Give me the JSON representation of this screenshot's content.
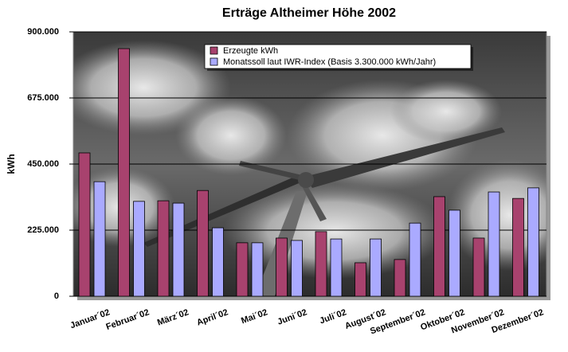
{
  "chart_data": {
    "type": "bar",
    "title": "Erträge Altheimer Höhe 2002",
    "y_label": "kWh",
    "categories": [
      "Januar´02",
      "Februar´02",
      "März´02",
      "April´02",
      "Mai´02",
      "Juni´02",
      "Juli´02",
      "August´02",
      "September´02",
      "Oktober´02",
      "November´02",
      "Dezember´02"
    ],
    "series": [
      {
        "name": "Erzeugte kWh",
        "color": "#a8426e",
        "values": [
          488000,
          843000,
          325000,
          360000,
          182000,
          198000,
          220000,
          114000,
          125000,
          339000,
          198000,
          333000
        ]
      },
      {
        "name": "Monatssoll laut IWR-Index (Basis 3.300.000 kWh/Jahr)",
        "color": "#aaaaff",
        "values": [
          390000,
          323000,
          317000,
          233000,
          182000,
          190000,
          195000,
          195000,
          249000,
          293000,
          355000,
          369000
        ]
      }
    ],
    "ylim": [
      0,
      900000
    ],
    "yticks": [
      0,
      {
        "value": 225000,
        "label": "225.000"
      },
      {
        "value": 450000,
        "label": "450.000"
      },
      {
        "value": 675000,
        "label": "675.000"
      },
      {
        "value": 900000,
        "label": "900.000"
      }
    ],
    "grid": true
  }
}
